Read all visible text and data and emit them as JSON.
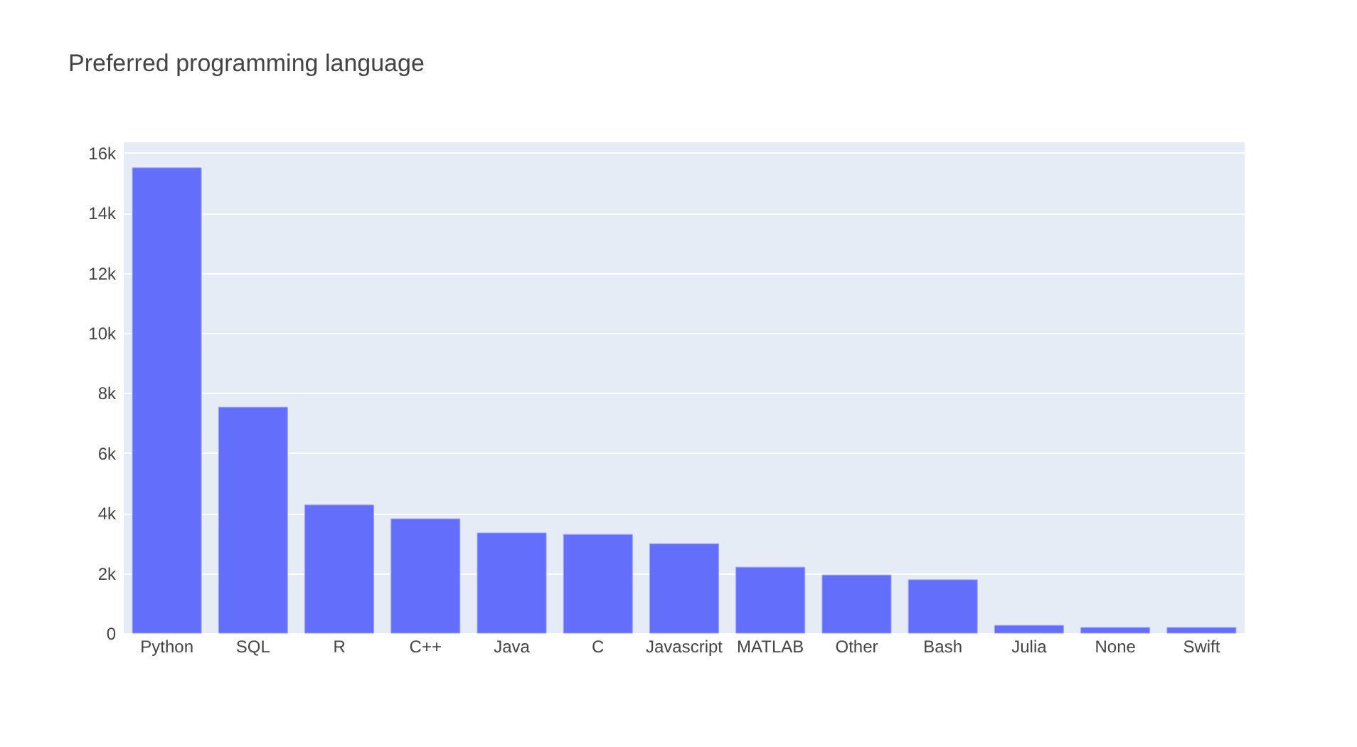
{
  "chart_data": {
    "type": "bar",
    "title": "Preferred programming language",
    "categories": [
      "Python",
      "SQL",
      "R",
      "C++",
      "Java",
      "C",
      "Javascript",
      "MATLAB",
      "Other",
      "Bash",
      "Julia",
      "None",
      "Swift"
    ],
    "values": [
      15500,
      7530,
      4270,
      3810,
      3340,
      3290,
      2980,
      2200,
      1940,
      1780,
      260,
      190,
      190
    ],
    "color": "#636efa",
    "ylim": [
      0,
      16350
    ],
    "yticks": [
      0,
      {
        "value": 2000,
        "label": "2k"
      },
      {
        "value": 4000,
        "label": "4k"
      },
      {
        "value": 6000,
        "label": "6k"
      },
      {
        "value": 8000,
        "label": "8k"
      },
      {
        "value": 10000,
        "label": "10k"
      },
      {
        "value": 12000,
        "label": "12k"
      },
      {
        "value": 14000,
        "label": "14k"
      },
      {
        "value": 16000,
        "label": "16k"
      }
    ],
    "grid": "y"
  }
}
